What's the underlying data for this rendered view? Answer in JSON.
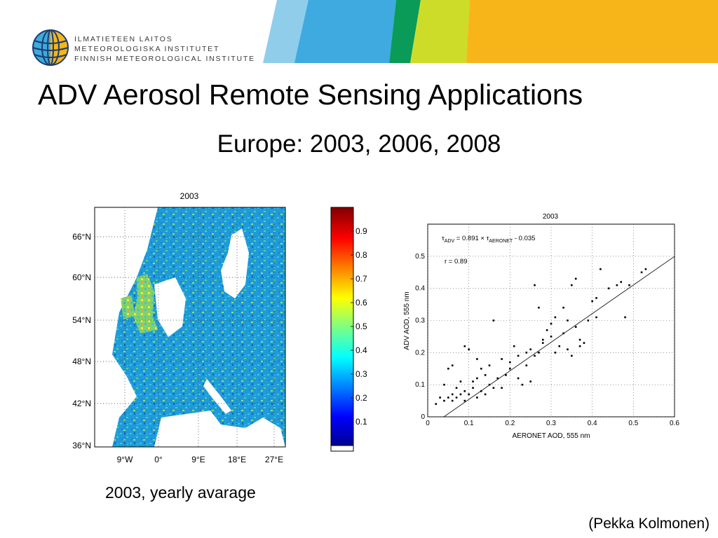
{
  "header": {
    "institute_lines": [
      "ILMATIETEEN LAITOS",
      "METEOROLOGISKA INSTITUTET",
      "FINNISH METEOROLOGICAL INSTITUTE"
    ],
    "logo_icon": "fmi-globe-logo-icon",
    "banner_colors": [
      "#8fcdeb",
      "#3eaadf",
      "#0a9b58",
      "#cddc28",
      "#f7b519"
    ]
  },
  "slide": {
    "title": "ADV Aerosol Remote Sensing Applications",
    "subtitle": "Europe: 2003, 2006, 2008",
    "map_caption": "2003, yearly avarage",
    "credit": "(Pekka Kolmonen)"
  },
  "chart_data": [
    {
      "type": "heatmap",
      "title": "2003",
      "description_kind": "map",
      "y_ticks": [
        "66°N",
        "60°N",
        "54°N",
        "48°N",
        "42°N",
        "36°N"
      ],
      "x_ticks": [
        "9°W",
        "0°",
        "9°E",
        "18°E",
        "27°E"
      ],
      "grid": true,
      "colorbar": {
        "ticks": [
          "0.1",
          "0.2",
          "0.3",
          "0.4",
          "0.5",
          "0.6",
          "0.7",
          "0.8",
          "0.9"
        ],
        "range": [
          0,
          1
        ]
      }
    },
    {
      "type": "scatter",
      "title": "2003",
      "xlabel": "AERONET AOD, 555 nm",
      "ylabel": "ADV AOD, 555 nm",
      "xlim": [
        0,
        0.6
      ],
      "ylim": [
        0,
        0.6
      ],
      "x_ticks": [
        "0",
        "0.1",
        "0.2",
        "0.3",
        "0.4",
        "0.5",
        "0.6"
      ],
      "y_ticks": [
        "0",
        "0.1",
        "0.2",
        "0.3",
        "0.4",
        "0.5"
      ],
      "grid": true,
      "fit_line": {
        "slope": 0.891,
        "intercept": -0.035
      },
      "annotation_fit": {
        "tau": "τ",
        "sub1": "ADV",
        "mid": " = 0.891 × τ",
        "sub2": "AERONET",
        "end": " - 0.035"
      },
      "annotation_r": "r = 0.89",
      "points": [
        [
          0.02,
          0.04
        ],
        [
          0.04,
          0.05
        ],
        [
          0.05,
          0.06
        ],
        [
          0.06,
          0.05
        ],
        [
          0.07,
          0.06
        ],
        [
          0.08,
          0.07
        ],
        [
          0.09,
          0.08
        ],
        [
          0.1,
          0.07
        ],
        [
          0.11,
          0.09
        ],
        [
          0.12,
          0.06
        ],
        [
          0.13,
          0.08
        ],
        [
          0.14,
          0.07
        ],
        [
          0.15,
          0.1
        ],
        [
          0.16,
          0.09
        ],
        [
          0.04,
          0.1
        ],
        [
          0.05,
          0.15
        ],
        [
          0.06,
          0.16
        ],
        [
          0.08,
          0.11
        ],
        [
          0.09,
          0.22
        ],
        [
          0.1,
          0.21
        ],
        [
          0.12,
          0.18
        ],
        [
          0.13,
          0.15
        ],
        [
          0.14,
          0.13
        ],
        [
          0.15,
          0.16
        ],
        [
          0.16,
          0.3
        ],
        [
          0.17,
          0.12
        ],
        [
          0.18,
          0.18
        ],
        [
          0.19,
          0.13
        ],
        [
          0.2,
          0.15
        ],
        [
          0.21,
          0.22
        ],
        [
          0.22,
          0.19
        ],
        [
          0.23,
          0.1
        ],
        [
          0.24,
          0.2
        ],
        [
          0.25,
          0.21
        ],
        [
          0.26,
          0.19
        ],
        [
          0.27,
          0.2
        ],
        [
          0.28,
          0.24
        ],
        [
          0.29,
          0.27
        ],
        [
          0.3,
          0.25
        ],
        [
          0.31,
          0.2
        ],
        [
          0.32,
          0.22
        ],
        [
          0.33,
          0.26
        ],
        [
          0.34,
          0.3
        ],
        [
          0.35,
          0.19
        ],
        [
          0.36,
          0.28
        ],
        [
          0.37,
          0.24
        ],
        [
          0.38,
          0.23
        ],
        [
          0.26,
          0.41
        ],
        [
          0.35,
          0.41
        ],
        [
          0.36,
          0.43
        ],
        [
          0.4,
          0.36
        ],
        [
          0.41,
          0.37
        ],
        [
          0.42,
          0.46
        ],
        [
          0.44,
          0.4
        ],
        [
          0.46,
          0.41
        ],
        [
          0.47,
          0.42
        ],
        [
          0.49,
          0.41
        ],
        [
          0.52,
          0.45
        ],
        [
          0.53,
          0.46
        ],
        [
          0.48,
          0.31
        ],
        [
          0.41,
          0.31
        ],
        [
          0.39,
          0.3
        ],
        [
          0.07,
          0.09
        ],
        [
          0.11,
          0.11
        ],
        [
          0.18,
          0.09
        ],
        [
          0.22,
          0.12
        ],
        [
          0.25,
          0.11
        ],
        [
          0.28,
          0.23
        ],
        [
          0.3,
          0.29
        ],
        [
          0.33,
          0.34
        ],
        [
          0.03,
          0.06
        ],
        [
          0.06,
          0.07
        ],
        [
          0.09,
          0.05
        ],
        [
          0.12,
          0.12
        ],
        [
          0.2,
          0.17
        ],
        [
          0.24,
          0.16
        ],
        [
          0.27,
          0.34
        ],
        [
          0.31,
          0.31
        ],
        [
          0.34,
          0.21
        ],
        [
          0.37,
          0.22
        ]
      ]
    }
  ]
}
